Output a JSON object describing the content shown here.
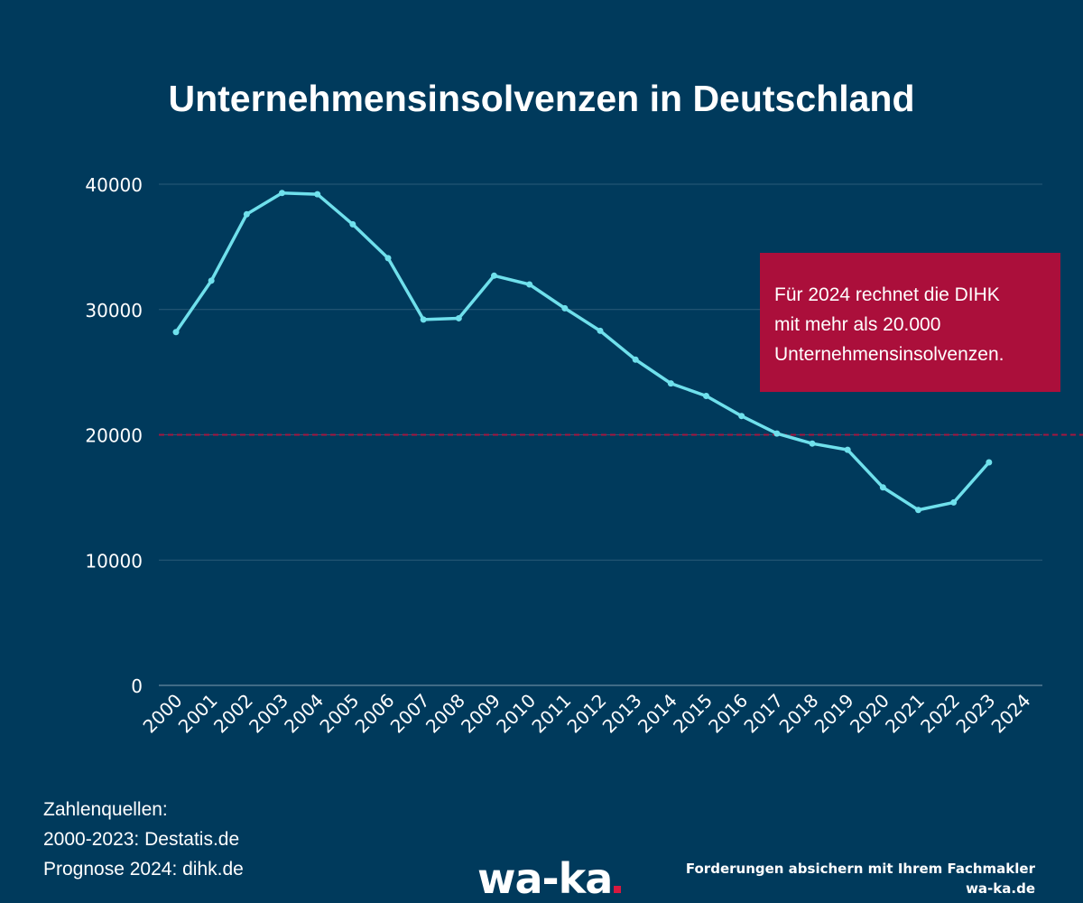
{
  "colors": {
    "background": "#003a5c",
    "line": "#6fe0ec",
    "gridline": "#2a5a78",
    "reference_line": "#a3173f",
    "annotation_box": "#ab0f3b",
    "logo_dot": "#d7193f",
    "text": "#ffffff"
  },
  "chart_data": {
    "type": "line",
    "title": "Unternehmensinsolvenzen in Deutschland",
    "xlabel": "",
    "ylabel": "",
    "categories": [
      "2000",
      "2001",
      "2002",
      "2003",
      "2004",
      "2005",
      "2006",
      "2007",
      "2008",
      "2009",
      "2010",
      "2011",
      "2012",
      "2013",
      "2014",
      "2015",
      "2016",
      "2017",
      "2018",
      "2019",
      "2020",
      "2021",
      "2022",
      "2023",
      "2024"
    ],
    "series": [
      {
        "values": [
          28200,
          32300,
          37600,
          39300,
          39200,
          36800,
          34100,
          29200,
          29300,
          32700,
          32000,
          30100,
          28300,
          26000,
          24100,
          23100,
          21500,
          20100,
          19300,
          18800,
          15800,
          14000,
          14600,
          17800,
          null
        ]
      }
    ],
    "y_ticks": [
      0,
      10000,
      20000,
      30000,
      40000
    ],
    "ylim": [
      0,
      40000
    ],
    "grid": true,
    "reference_line": {
      "value": 20000,
      "style": "dashed"
    },
    "annotation": [
      "Für 2024 rechnet die DIHK",
      "mit mehr als 20.000",
      "Unternehmensinsolvenzen."
    ]
  },
  "sources": {
    "heading": "Zahlenquellen:",
    "line1": "2000-2023: Destatis.de",
    "line2": "Prognose 2024: dihk.de"
  },
  "branding": {
    "logo": "wa-ka",
    "tagline": "Forderungen absichern mit Ihrem Fachmakler",
    "url": "wa-ka.de"
  }
}
